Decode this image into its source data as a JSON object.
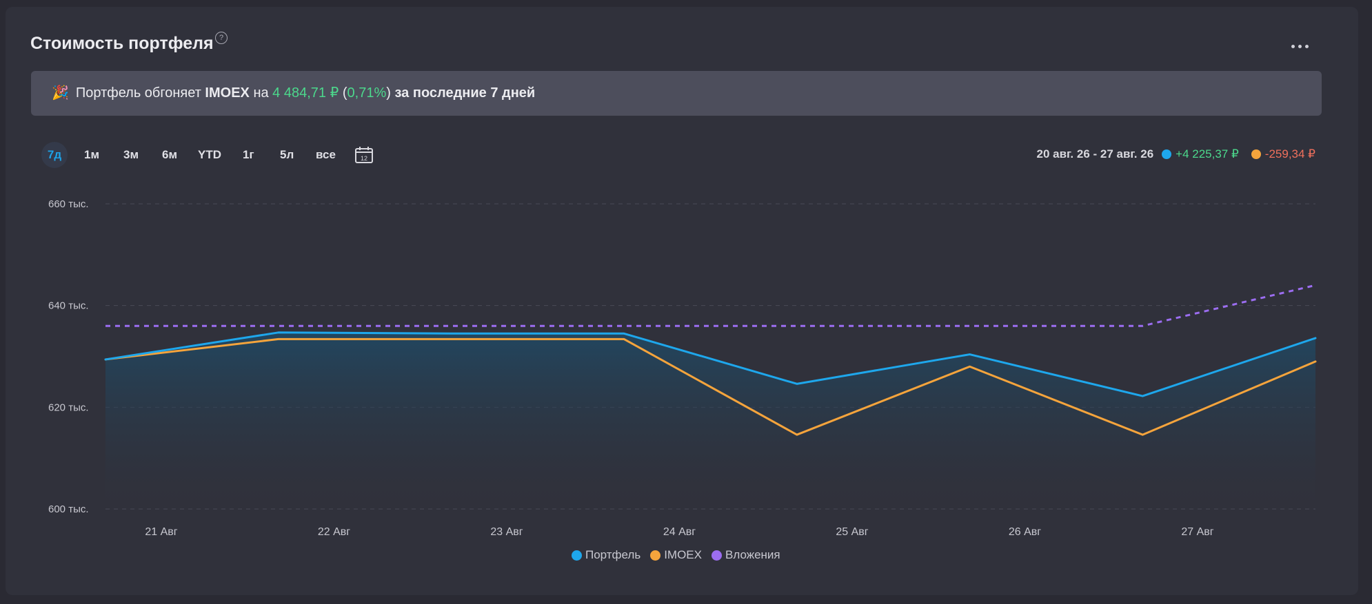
{
  "header": {
    "title": "Стоимость портфеля",
    "help_icon": "?"
  },
  "banner": {
    "icon": "🎉",
    "text_before": "Портфель обгоняет",
    "index_name": "IMOEX",
    "text_on": "на",
    "amount": "4 484,71 ₽",
    "paren_open": "(",
    "percent": "0,71%",
    "paren_close": ")",
    "period_text": "за последние 7 дней"
  },
  "periods": [
    "7д",
    "1м",
    "3м",
    "6м",
    "YTD",
    "1г",
    "5л",
    "все"
  ],
  "active_period": "7д",
  "calendar_icon_label": "12",
  "summary": {
    "range": "20 авг. 26 - 27 авг. 26",
    "portfolio_change": "+4 225,37 ₽",
    "imoex_change": "-259,34 ₽"
  },
  "colors": {
    "portfolio": "#1ea7ec",
    "imoex": "#f5a43c",
    "investments": "#9b6df0",
    "positive": "#4cd88c",
    "negative": "#f0705c",
    "accent": "#1ea2e6"
  },
  "chart_data": {
    "type": "line",
    "title": "",
    "xlabel": "",
    "ylabel": "",
    "x_tick_labels": [
      "21 Авг",
      "22 Авг",
      "23 Авг",
      "24 Авг",
      "25 Авг",
      "26 Авг",
      "27 Авг"
    ],
    "y_tick_labels": [
      "600 тыс.",
      "620 тыс.",
      "640 тыс.",
      "660 тыс."
    ],
    "y_ticks": [
      600000,
      620000,
      640000,
      660000
    ],
    "ylim": [
      600000,
      660000
    ],
    "x": [
      "2026-08-20 12:00",
      "2026-08-21 12:00",
      "2026-08-22 12:00",
      "2026-08-23 12:00",
      "2026-08-24 12:00",
      "2026-08-25 12:00",
      "2026-08-26 12:00",
      "2026-08-27 12:00"
    ],
    "x_range": [
      "2026-08-20 12:00",
      "2026-08-27 12:00"
    ],
    "series": [
      {
        "name": "Портфель",
        "style": "solid",
        "fill": "gradient-area",
        "values": [
          629400,
          634700,
          634500,
          634500,
          624600,
          630400,
          622200,
          633600
        ]
      },
      {
        "name": "IMOEX",
        "style": "solid",
        "values": [
          629400,
          633400,
          633400,
          633400,
          614600,
          628000,
          614600,
          629000
        ]
      },
      {
        "name": "Вложения",
        "style": "dashed",
        "values": [
          636000,
          636000,
          636000,
          636000,
          636000,
          636000,
          636000,
          644000
        ]
      }
    ],
    "grid": "horizontal dashed",
    "legend_position": "bottom-center"
  },
  "legend": [
    "Портфель",
    "IMOEX",
    "Вложения"
  ]
}
